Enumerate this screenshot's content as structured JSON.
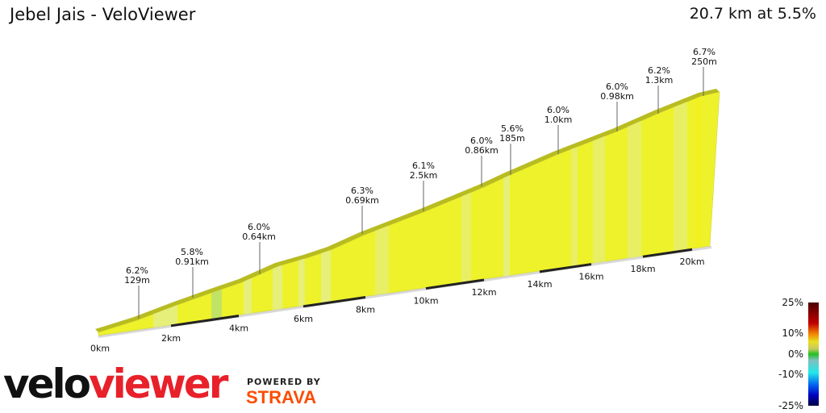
{
  "header": {
    "title": "Jebel Jais - VeloViewer",
    "summary": "20.7 km at 5.5%"
  },
  "chart_data": {
    "type": "area",
    "title": "Jebel Jais - VeloViewer",
    "total_distance_km": 20.7,
    "average_gradient_pct": 5.5,
    "x_ticks": [
      "0km",
      "2km",
      "4km",
      "6km",
      "8km",
      "10km",
      "12km",
      "14km",
      "16km",
      "18km",
      "20km"
    ],
    "annotations": [
      {
        "gradient": "6.2%",
        "length": "129m"
      },
      {
        "gradient": "5.8%",
        "length": "0.91km"
      },
      {
        "gradient": "6.0%",
        "length": "0.64km"
      },
      {
        "gradient": "6.3%",
        "length": "0.69km"
      },
      {
        "gradient": "6.1%",
        "length": "2.5km"
      },
      {
        "gradient": "6.0%",
        "length": "0.86km"
      },
      {
        "gradient": "5.6%",
        "length": "185m"
      },
      {
        "gradient": "6.0%",
        "length": "1.0km"
      },
      {
        "gradient": "6.0%",
        "length": "0.98km"
      },
      {
        "gradient": "6.2%",
        "length": "1.3km"
      },
      {
        "gradient": "6.7%",
        "length": "250m"
      }
    ],
    "legend": {
      "labels": [
        "25%",
        "10%",
        "0%",
        "-10%",
        "-25%"
      ],
      "colors": [
        "#5a0000",
        "#e00000",
        "#f0e020",
        "#30c030",
        "#20e0e0",
        "#0020e0",
        "#000050"
      ]
    },
    "fill_color": "#eef22a"
  },
  "branding": {
    "logo_a": "velo",
    "logo_b": "viewer",
    "powered": "POWERED BY",
    "strava": "STRAVA"
  }
}
